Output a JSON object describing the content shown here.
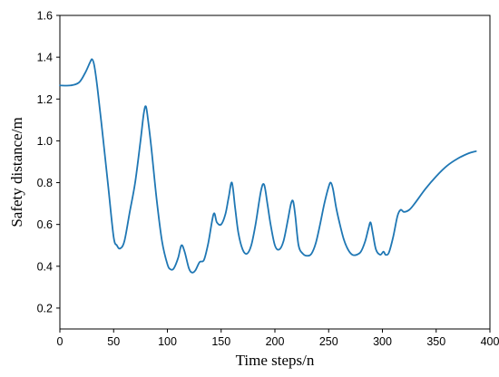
{
  "chart_data": {
    "type": "line",
    "title": "",
    "xlabel": "Time steps/n",
    "ylabel": "Safety distance/m",
    "xlim": [
      0,
      400
    ],
    "ylim": [
      0.1,
      1.6
    ],
    "xticks": [
      0,
      50,
      100,
      150,
      200,
      250,
      300,
      350,
      400
    ],
    "xtick_labels": [
      "0",
      "50",
      "100",
      "150",
      "200",
      "250",
      "300",
      "350",
      "400"
    ],
    "yticks": [
      0.2,
      0.4,
      0.6,
      0.8,
      1.0,
      1.2,
      1.4,
      1.6
    ],
    "ytick_labels": [
      "0.2",
      "0.4",
      "0.6",
      "0.8",
      "1.0",
      "1.2",
      "1.4",
      "1.6"
    ],
    "grid": false,
    "legend": "none",
    "line_color": "#1f77b4",
    "series": [
      {
        "x": [
          0,
          10,
          18,
          24,
          28,
          30,
          32,
          35,
          40,
          45,
          50,
          53,
          56,
          60,
          65,
          70,
          75,
          78,
          80,
          82,
          85,
          90,
          95,
          100,
          103,
          106,
          110,
          113,
          116,
          120,
          123,
          126,
          130,
          134,
          138,
          143,
          146,
          150,
          154,
          157,
          160,
          163,
          166,
          170,
          174,
          178,
          182,
          187,
          190,
          193,
          196,
          200,
          204,
          208,
          212,
          215,
          217,
          219,
          222,
          226,
          230,
          234,
          238,
          242,
          246,
          250,
          252,
          254,
          257,
          260,
          264,
          268,
          272,
          276,
          280,
          284,
          287,
          289,
          291,
          294,
          298,
          301,
          303,
          306,
          310,
          314,
          317,
          320,
          325,
          330,
          340,
          350,
          360,
          370,
          380,
          387
        ],
        "y": [
          1.265,
          1.265,
          1.28,
          1.33,
          1.375,
          1.39,
          1.36,
          1.25,
          1.02,
          0.78,
          0.54,
          0.5,
          0.485,
          0.52,
          0.66,
          0.8,
          1.0,
          1.13,
          1.165,
          1.1,
          0.97,
          0.72,
          0.52,
          0.41,
          0.385,
          0.39,
          0.44,
          0.5,
          0.47,
          0.39,
          0.37,
          0.38,
          0.42,
          0.43,
          0.51,
          0.65,
          0.61,
          0.6,
          0.65,
          0.73,
          0.8,
          0.68,
          0.56,
          0.48,
          0.46,
          0.5,
          0.6,
          0.76,
          0.79,
          0.7,
          0.6,
          0.5,
          0.48,
          0.52,
          0.62,
          0.7,
          0.71,
          0.64,
          0.5,
          0.46,
          0.45,
          0.46,
          0.51,
          0.6,
          0.7,
          0.78,
          0.8,
          0.77,
          0.68,
          0.61,
          0.53,
          0.48,
          0.455,
          0.455,
          0.47,
          0.52,
          0.58,
          0.61,
          0.56,
          0.48,
          0.455,
          0.47,
          0.455,
          0.465,
          0.54,
          0.64,
          0.67,
          0.66,
          0.67,
          0.7,
          0.77,
          0.83,
          0.88,
          0.915,
          0.94,
          0.95
        ]
      }
    ]
  }
}
